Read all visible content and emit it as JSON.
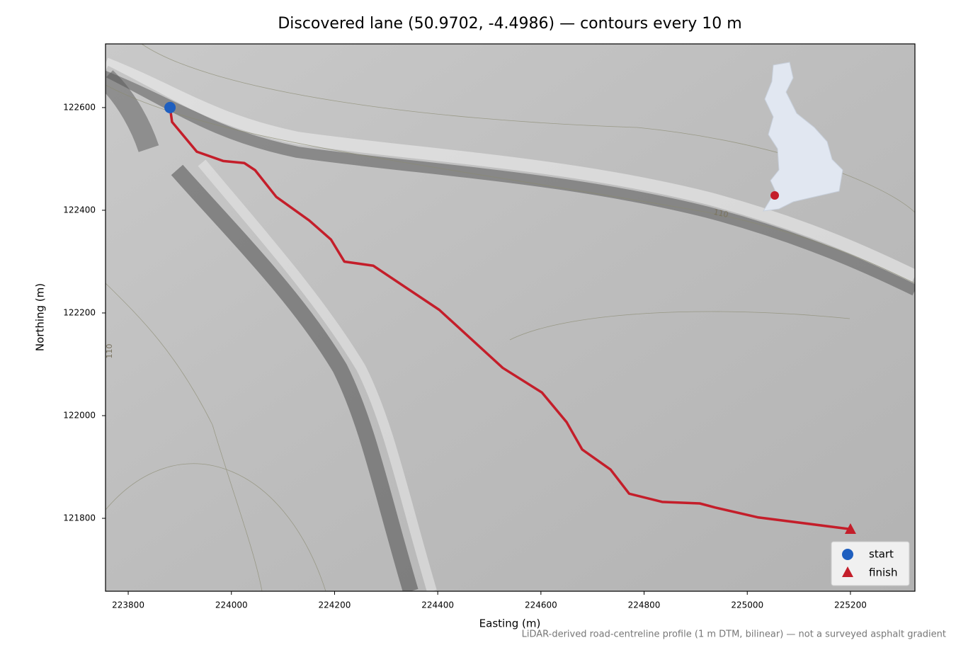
{
  "chart_data": {
    "type": "line",
    "title": "Discovered lane (50.9702, -4.4986) — contours every 10 m",
    "x_label": "Easting (m)",
    "y_label": "Northing (m)",
    "footnote": "LiDAR-derived road-centreline profile (1 m DTM, bilinear) — not a surveyed asphalt gradient",
    "contour_labels": [
      "110",
      "110"
    ],
    "color": "#c41e2a",
    "x": [
      223881,
      223885,
      223933,
      223984,
      224025,
      224046,
      224087,
      224151,
      224193,
      224219,
      224275,
      224403,
      224526,
      224602,
      224650,
      224680,
      224735,
      224771,
      224835,
      224908,
      224938,
      225020,
      225199
    ],
    "values": [
      122600,
      122572,
      122514,
      122496,
      122492,
      122478,
      122426,
      122380,
      122343,
      122300,
      122292,
      122206,
      122093,
      122045,
      121987,
      121934,
      121895,
      121848,
      121832,
      121829,
      121821,
      121802,
      121779
    ],
    "markers": [
      {
        "name": "start",
        "shape": "circle",
        "color": "#1f5fbf",
        "x": 223881,
        "y": 122600
      },
      {
        "name": "finish",
        "shape": "triangle",
        "color": "#c41e2a",
        "x": 225200,
        "y": 121778
      }
    ],
    "xlim": [
      223756,
      225325
    ],
    "ylim": [
      121658,
      122724
    ],
    "xticks": [
      223800,
      224000,
      224200,
      224400,
      224600,
      224800,
      225000,
      225200
    ],
    "yticks": [
      121800,
      122000,
      122200,
      122400,
      122600
    ],
    "legend": "lower right",
    "grid": false
  }
}
